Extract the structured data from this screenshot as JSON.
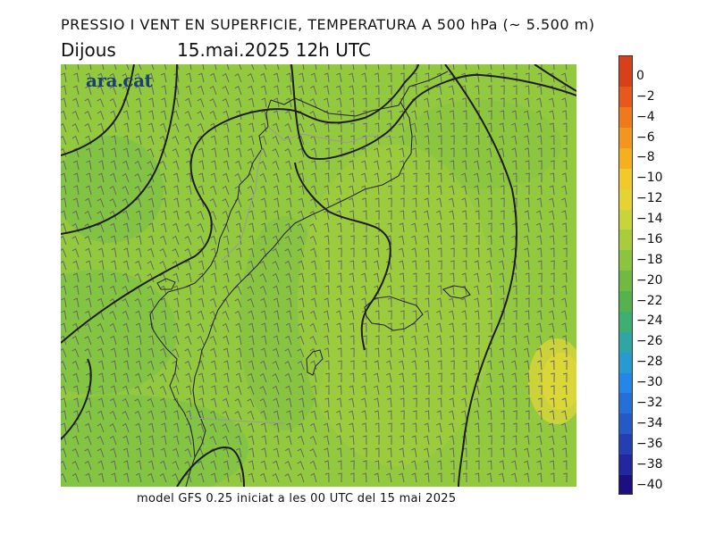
{
  "header": {
    "title": "PRESSIO I VENT EN SUPERFICIE, TEMPERATURA A 500 hPa (~ 5.500 m)",
    "day": "Dijous",
    "date": "15.mai.2025 12h UTC"
  },
  "map": {
    "logo": "ara.cat",
    "background_color": "#93c93e",
    "coastline_color": "#222222",
    "isobar_color": "#222222",
    "barb_color": "#666666"
  },
  "footer": {
    "text": "model GFS 0.25 iniciat a les 00 UTC del 15 mai 2025"
  },
  "legend": {
    "labels": [
      "0",
      "−2",
      "−4",
      "−6",
      "−8",
      "−10",
      "−12",
      "−14",
      "−16",
      "−18",
      "−20",
      "−22",
      "−24",
      "−26",
      "−28",
      "−30",
      "−32",
      "−34",
      "−36",
      "−38",
      "−40"
    ],
    "colors": [
      "#d8401c",
      "#e55a1c",
      "#ee7a1c",
      "#f2961e",
      "#f4b01f",
      "#f2c92a",
      "#e4d333",
      "#c9d33a",
      "#a8cc3c",
      "#8cc43d",
      "#70ba43",
      "#55b34e",
      "#3fae73",
      "#2fa6a3",
      "#279ad0",
      "#2685e8",
      "#2470d8",
      "#2559c4",
      "#243fb2",
      "#23279e",
      "#1c0f80"
    ]
  }
}
